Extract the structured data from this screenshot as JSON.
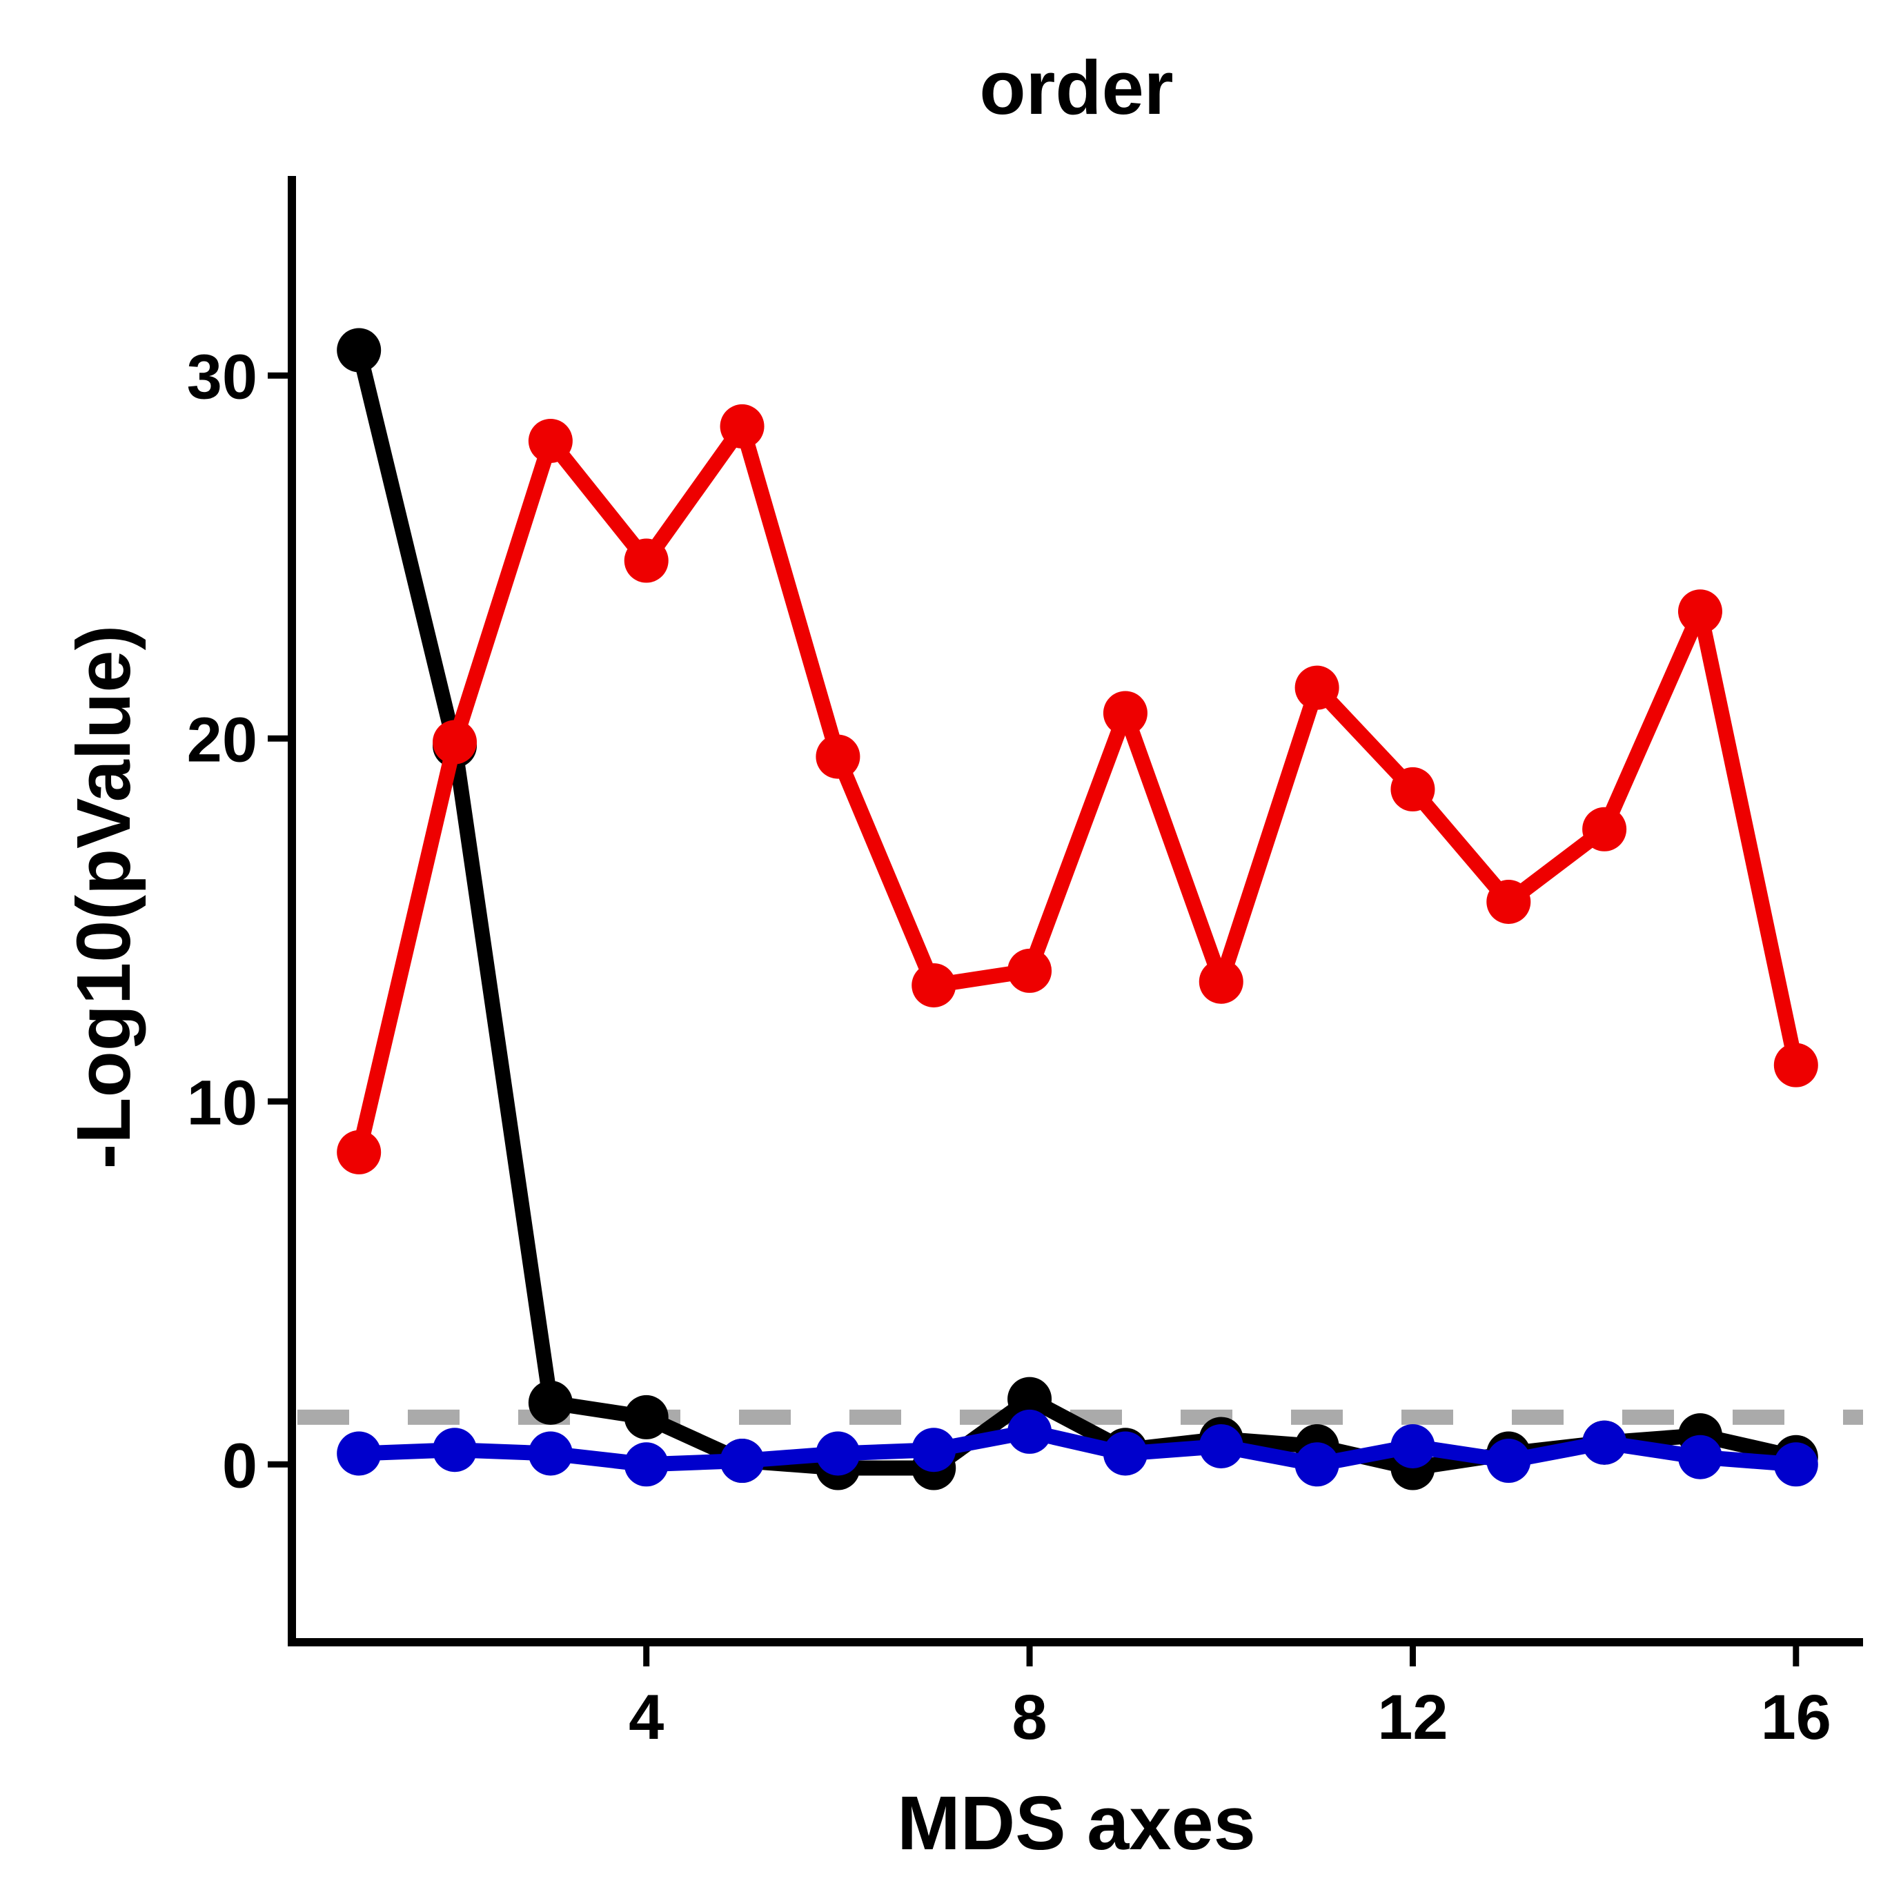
{
  "chart_data": {
    "type": "line",
    "title": "order",
    "xlabel": "MDS axes",
    "ylabel": "-Log10(pValue)",
    "xlim": [
      0.3,
      16.7
    ],
    "ylim": [
      -4.9,
      35.5
    ],
    "xticks": [
      4,
      8,
      12,
      16
    ],
    "yticks": [
      0,
      10,
      20,
      30
    ],
    "grid": false,
    "x": [
      1,
      2,
      3,
      4,
      5,
      6,
      7,
      8,
      9,
      10,
      11,
      12,
      13,
      14,
      15,
      16
    ],
    "threshold": {
      "value": 1.3,
      "color": "#aaaaaa",
      "style": "dashed"
    },
    "series": [
      {
        "color": "#000000",
        "values": [
          30.7,
          19.8,
          1.7,
          1.3,
          0.1,
          -0.1,
          -0.1,
          1.8,
          0.4,
          0.7,
          0.5,
          -0.1,
          0.3,
          0.6,
          0.8,
          0.2
        ]
      },
      {
        "color": "#ee0000",
        "values": [
          8.6,
          19.9,
          28.2,
          24.9,
          28.6,
          19.5,
          13.2,
          13.6,
          20.7,
          13.3,
          21.4,
          18.6,
          15.5,
          17.5,
          23.5,
          11.0
        ]
      },
      {
        "color": "#0000cc",
        "values": [
          0.3,
          0.4,
          0.3,
          0.0,
          0.1,
          0.3,
          0.4,
          0.9,
          0.3,
          0.5,
          0.0,
          0.5,
          0.1,
          0.6,
          0.2,
          0.0
        ]
      }
    ]
  }
}
